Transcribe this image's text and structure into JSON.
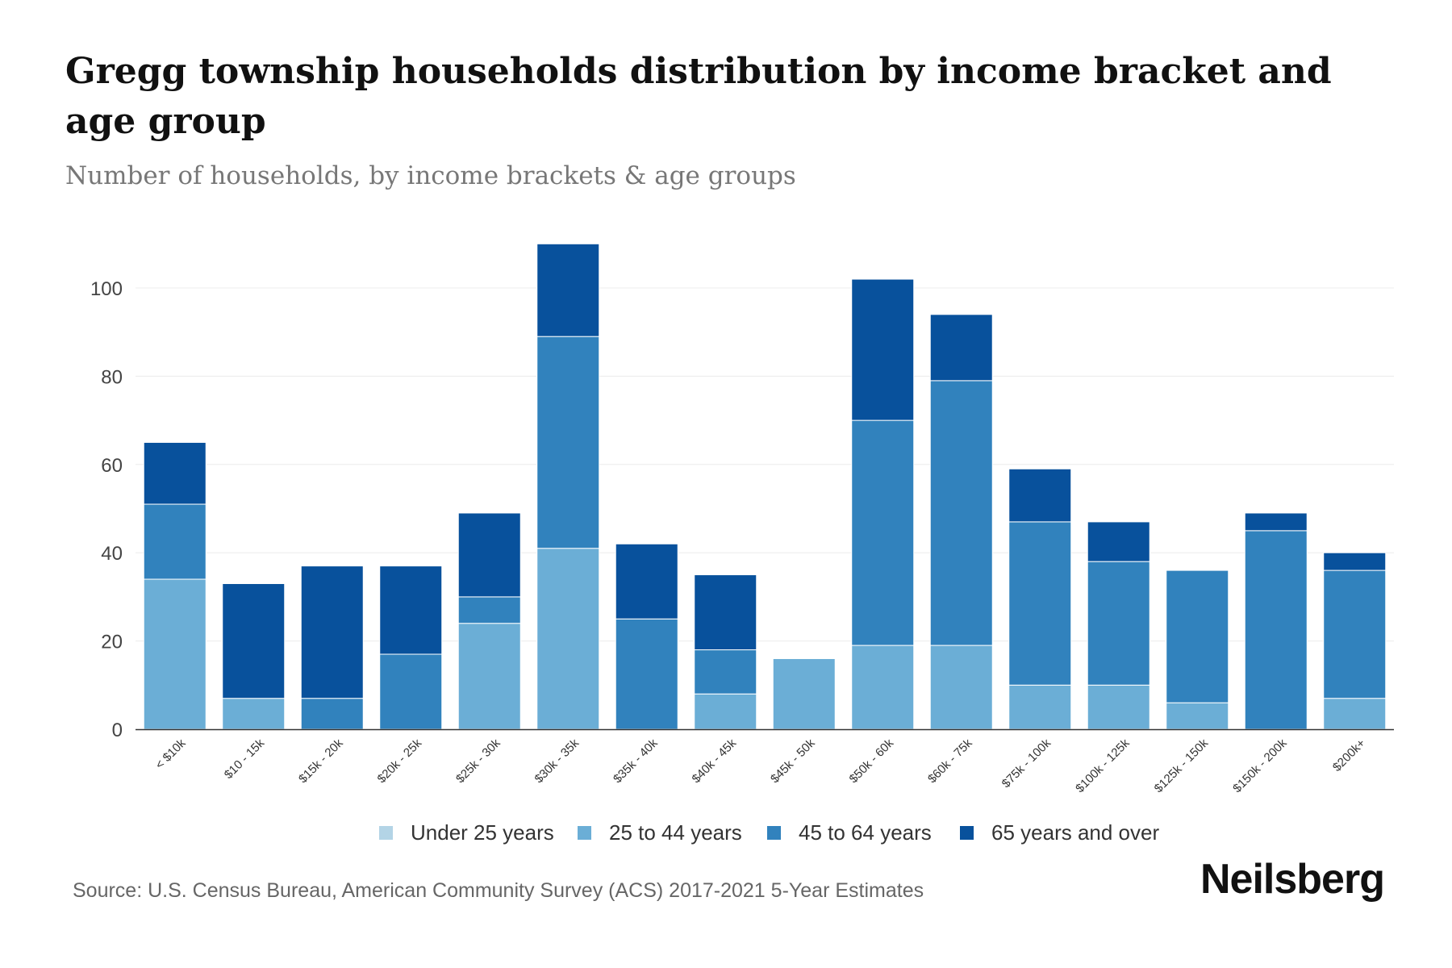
{
  "chart_data": {
    "type": "bar",
    "stacked": true,
    "title": "Gregg township households distribution by income bracket and age group",
    "subtitle": "Number of households, by income brackets & age groups",
    "xlabel": "",
    "ylabel": "",
    "ylim": [
      0,
      115
    ],
    "yticks": [
      0,
      20,
      40,
      60,
      80,
      100
    ],
    "grid": true,
    "legend_position": "bottom",
    "categories": [
      "< $10k",
      "$10 - 15k",
      "$15k - 20k",
      "$20k - 25k",
      "$25k - 30k",
      "$30k - 35k",
      "$35k - 40k",
      "$40k - 45k",
      "$45k - 50k",
      "$50k - 60k",
      "$60k - 75k",
      "$75k - 100k",
      "$100k - 125k",
      "$125k - 150k",
      "$150k - 200k",
      "$200k+"
    ],
    "series": [
      {
        "name": "Under 25 years",
        "color": "#b3d4e6",
        "values": [
          0,
          0,
          0,
          0,
          0,
          0,
          0,
          0,
          0,
          0,
          0,
          0,
          0,
          0,
          0,
          0
        ]
      },
      {
        "name": "25 to 44 years",
        "color": "#6baed6",
        "values": [
          34,
          7,
          0,
          0,
          24,
          41,
          0,
          8,
          16,
          19,
          19,
          10,
          10,
          6,
          0,
          7
        ]
      },
      {
        "name": "45 to 64 years",
        "color": "#3182bd",
        "values": [
          17,
          0,
          7,
          17,
          6,
          48,
          25,
          10,
          0,
          51,
          60,
          37,
          28,
          30,
          45,
          29
        ]
      },
      {
        "name": "65 years and over",
        "color": "#08519c",
        "values": [
          14,
          26,
          30,
          20,
          19,
          21,
          17,
          17,
          0,
          32,
          15,
          12,
          9,
          0,
          4,
          4
        ]
      }
    ]
  },
  "footer": {
    "source": "Source: U.S. Census Bureau, American Community Survey (ACS) 2017-2021 5-Year Estimates",
    "brand": "Neilsberg"
  }
}
